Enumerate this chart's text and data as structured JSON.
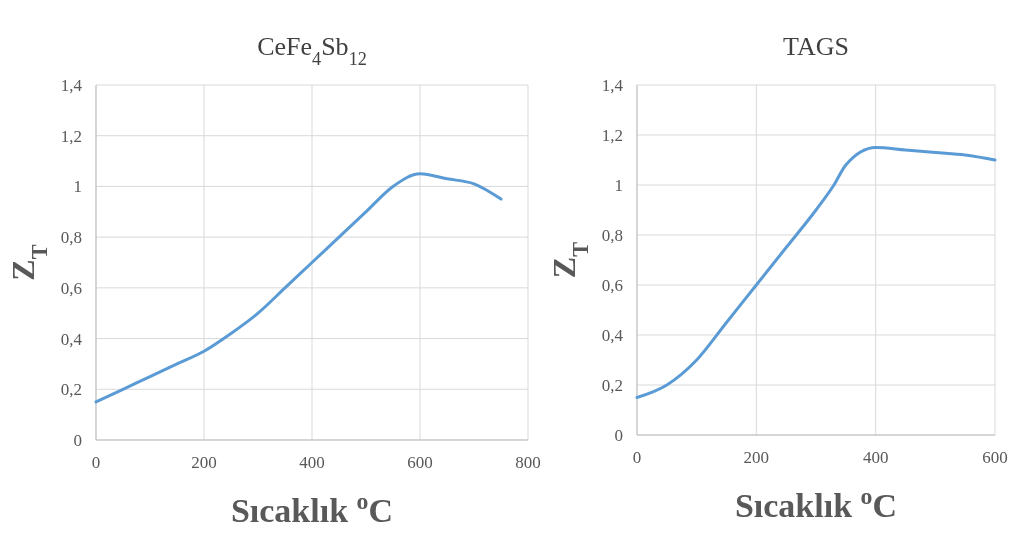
{
  "chart_data": [
    {
      "type": "line",
      "title": "CeFe$_{4}$Sb$_{12}$",
      "xlabel": "Sıcaklık $^{o}$C",
      "ylabel": "Z$_{T}$",
      "x": [
        0,
        50,
        100,
        150,
        200,
        250,
        300,
        350,
        400,
        450,
        500,
        550,
        600,
        650,
        700,
        750
      ],
      "series": [
        {
          "color": "#5b9bd5",
          "values": [
            0.15,
            0.2,
            0.25,
            0.3,
            0.35,
            0.42,
            0.5,
            0.6,
            0.7,
            0.8,
            0.9,
            1.0,
            1.05,
            1.03,
            1.01,
            0.95
          ]
        }
      ],
      "xlim": [
        0,
        800
      ],
      "xticks": [
        0,
        200,
        400,
        600,
        800
      ],
      "ylim": [
        0,
        1.4
      ],
      "yticks": [
        {
          "value": 0,
          "label": "0"
        },
        {
          "value": 0.2,
          "label": "0,2"
        },
        {
          "value": 0.4,
          "label": "0,4"
        },
        {
          "value": 0.6,
          "label": "0,6"
        },
        {
          "value": 0.8,
          "label": "0,8"
        },
        {
          "value": 1,
          "label": "1"
        },
        {
          "value": 1.2,
          "label": "1,2"
        },
        {
          "value": 1.4,
          "label": "1,4"
        }
      ],
      "grid": true
    },
    {
      "type": "line",
      "title": "TAGS",
      "xlabel": "Sıcaklık $^{o}$C",
      "ylabel": "Z$_{T}$",
      "x": [
        0,
        50,
        100,
        150,
        200,
        250,
        300,
        330,
        350,
        400,
        450,
        500,
        550,
        600
      ],
      "series": [
        {
          "color": "#5b9bd5",
          "values": [
            0.15,
            0.2,
            0.3,
            0.45,
            0.6,
            0.75,
            0.9,
            1.0,
            1.08,
            1.15,
            1.14,
            1.13,
            1.12,
            1.1
          ]
        }
      ],
      "xlim": [
        0,
        600
      ],
      "xticks": [
        0,
        200,
        400,
        600
      ],
      "ylim": [
        0,
        1.4
      ],
      "yticks": [
        {
          "value": 0,
          "label": "0"
        },
        {
          "value": 0.2,
          "label": "0,2"
        },
        {
          "value": 0.4,
          "label": "0,4"
        },
        {
          "value": 0.6,
          "label": "0,6"
        },
        {
          "value": 0.8,
          "label": "0,8"
        },
        {
          "value": 1,
          "label": "1"
        },
        {
          "value": 1.2,
          "label": "1,2"
        },
        {
          "value": 1.4,
          "label": "1,4"
        }
      ],
      "grid": true
    }
  ]
}
